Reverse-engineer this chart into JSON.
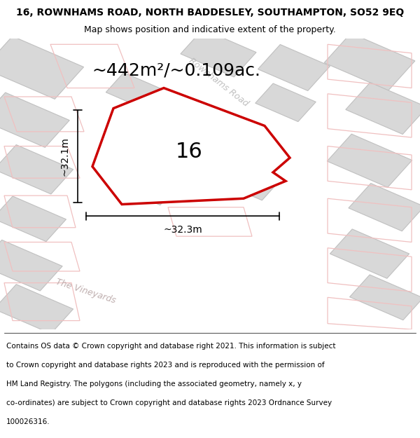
{
  "title": "16, ROWNHAMS ROAD, NORTH BADDESLEY, SOUTHAMPTON, SO52 9EQ",
  "subtitle": "Map shows position and indicative extent of the property.",
  "area_text": "~442m²/~0.109ac.",
  "width_label": "~32.3m",
  "height_label": "~32.1m",
  "property_number": "16",
  "footer_lines": [
    "Contains OS data © Crown copyright and database right 2021. This information is subject",
    "to Crown copyright and database rights 2023 and is reproduced with the permission of",
    "HM Land Registry. The polygons (including the associated geometry, namely x, y",
    "co-ordinates) are subject to Crown copyright and database rights 2023 Ordnance Survey",
    "100026316."
  ],
  "map_bg": "#f0f0f0",
  "road_color_light": "#f0c0c0",
  "building_fc": "#d8d8d8",
  "building_ec": "#c0c0c0",
  "property_fill": "#ffffff",
  "property_stroke": "#cc0000",
  "road_label_color": "#c0c0c0",
  "street_label_color": "#c0b0b0",
  "title_fontsize": 10,
  "subtitle_fontsize": 9,
  "area_fontsize": 18,
  "label_fontsize": 10,
  "number_fontsize": 22,
  "footer_fontsize": 7.5
}
